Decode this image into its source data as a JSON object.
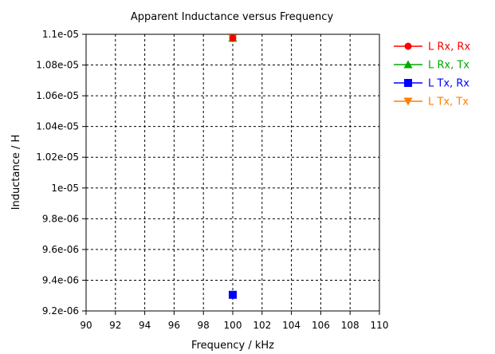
{
  "chart_data": {
    "type": "scatter",
    "title": "Apparent Inductance versus Frequency",
    "xlabel": "Frequency / kHz",
    "ylabel": "Inductance / H",
    "xlim": [
      90,
      110
    ],
    "ylim": [
      9.2e-06,
      1.1e-05
    ],
    "x_ticks": [
      90,
      92,
      94,
      96,
      98,
      100,
      102,
      104,
      106,
      108,
      110
    ],
    "x_tick_labels": [
      "90",
      "92",
      "94",
      "96",
      "98",
      "100",
      "102",
      "104",
      "106",
      "108",
      "110"
    ],
    "y_ticks": [
      9.2e-06,
      9.4e-06,
      9.6e-06,
      9.8e-06,
      1e-05,
      1.02e-05,
      1.04e-05,
      1.06e-05,
      1.08e-05,
      1.1e-05
    ],
    "y_tick_labels": [
      "9.2e-06",
      "9.4e-06",
      "9.6e-06",
      "9.8e-06",
      "1e-05",
      "1.02e-05",
      "1.04e-05",
      "1.06e-05",
      "1.08e-05",
      "1.1e-05"
    ],
    "grid": true,
    "legend_position": "right",
    "series": [
      {
        "name": "L Rx, Rx",
        "color": "#ff0000",
        "marker": "circle",
        "x": [
          100
        ],
        "y": [
          1.0975e-05
        ]
      },
      {
        "name": "L Rx, Tx",
        "color": "#00aa00",
        "marker": "triangle-up",
        "x": [
          100
        ],
        "y": [
          1.0975e-05
        ]
      },
      {
        "name": "L Tx, Rx",
        "color": "#0000ff",
        "marker": "square",
        "x": [
          100
        ],
        "y": [
          9.305e-06
        ]
      },
      {
        "name": "L Tx, Tx",
        "color": "#ff8000",
        "marker": "triangle-down",
        "x": [
          100
        ],
        "y": [
          1.0975e-05
        ]
      }
    ]
  }
}
